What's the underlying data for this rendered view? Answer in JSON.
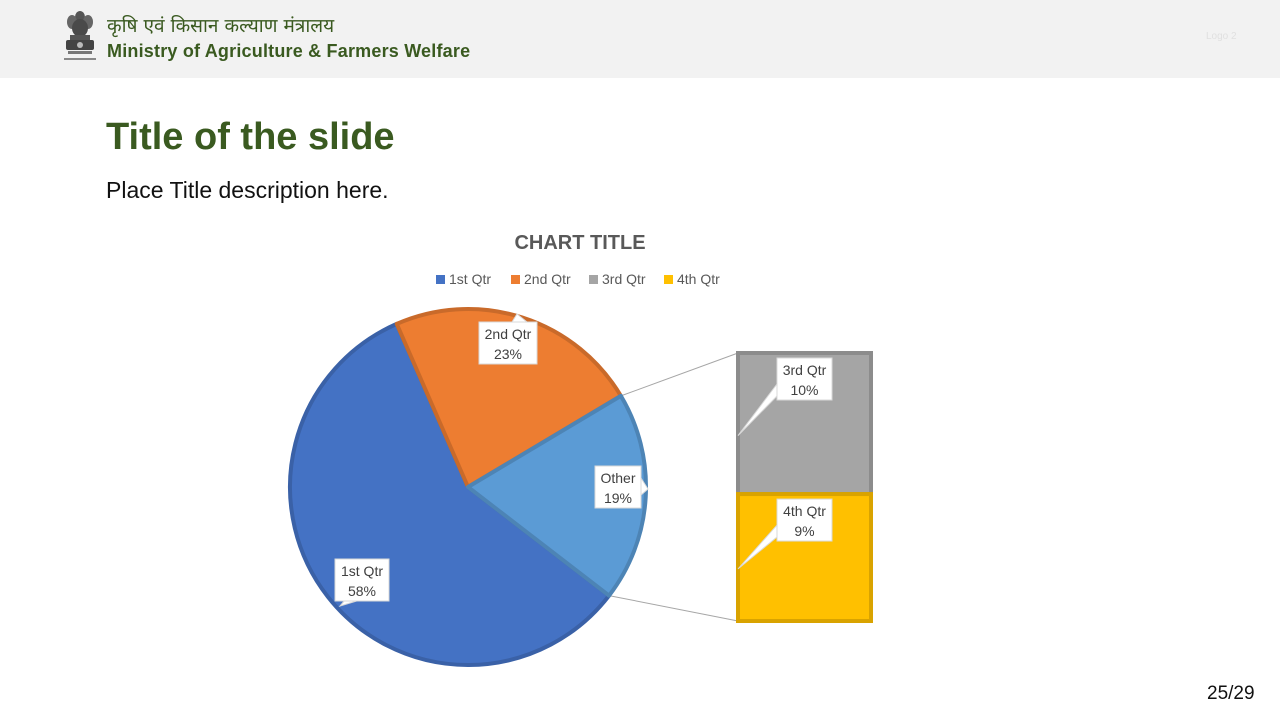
{
  "header": {
    "hindi_name": "कृषि एवं किसान कल्याण मंत्रालय",
    "ministry_name": "Ministry of Agriculture & Farmers Welfare",
    "logo2_label": "Logo 2",
    "emblem_icon": "state-emblem-icon"
  },
  "slide": {
    "title": "Title of the slide",
    "description": "Place Title description here.",
    "page_number": "25/29"
  },
  "chart_data": {
    "type": "pie",
    "subtype": "bar-of-pie",
    "title": "CHART TITLE",
    "legend_position": "top",
    "legend": [
      "1st Qtr",
      "2nd Qtr",
      "3rd Qtr",
      "4th Qtr"
    ],
    "colors": {
      "1st Qtr": "#4472c4",
      "2nd Qtr": "#ed7d31",
      "3rd Qtr": "#a5a5a5",
      "4th Qtr": "#ffc000",
      "Other": "#5b9bd5"
    },
    "pie_slices": [
      {
        "label": "1st Qtr",
        "value": 58,
        "value_label": "58%"
      },
      {
        "label": "2nd Qtr",
        "value": 23,
        "value_label": "23%"
      },
      {
        "label": "Other",
        "value": 19,
        "value_label": "19%"
      }
    ],
    "bar_breakdown": [
      {
        "label": "3rd Qtr",
        "value": 10,
        "value_label": "10%"
      },
      {
        "label": "4th Qtr",
        "value": 9,
        "value_label": "9%"
      }
    ]
  }
}
